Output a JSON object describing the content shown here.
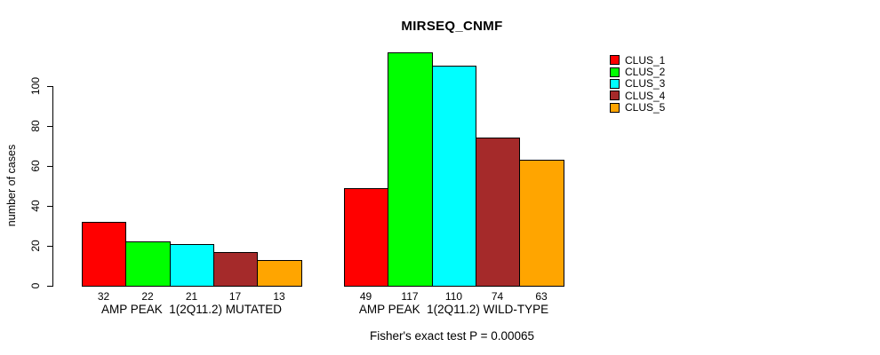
{
  "chart_data": {
    "type": "bar",
    "title": "MIRSEQ_CNMF",
    "ylabel": "number of cases",
    "xlabel": "",
    "ylim": [
      0,
      100
    ],
    "yticks": [
      0,
      20,
      40,
      60,
      80,
      100
    ],
    "grid": false,
    "legend_position": "right",
    "bar_border_color": "#000000",
    "categories": [
      "AMP PEAK  1(2Q11.2) MUTATED",
      "AMP PEAK  1(2Q11.2) WILD-TYPE"
    ],
    "series": [
      {
        "name": "CLUS_1",
        "color": "#FF0000",
        "values": [
          32,
          49
        ]
      },
      {
        "name": "CLUS_2",
        "color": "#00FF00",
        "values": [
          22,
          117
        ]
      },
      {
        "name": "CLUS_3",
        "color": "#00FFFF",
        "values": [
          21,
          110
        ]
      },
      {
        "name": "CLUS_4",
        "color": "#A52A2A",
        "values": [
          17,
          74
        ]
      },
      {
        "name": "CLUS_5",
        "color": "#FFA500",
        "values": [
          13,
          63
        ]
      }
    ],
    "annotation": "Fisher's exact test P = 0.00065"
  }
}
